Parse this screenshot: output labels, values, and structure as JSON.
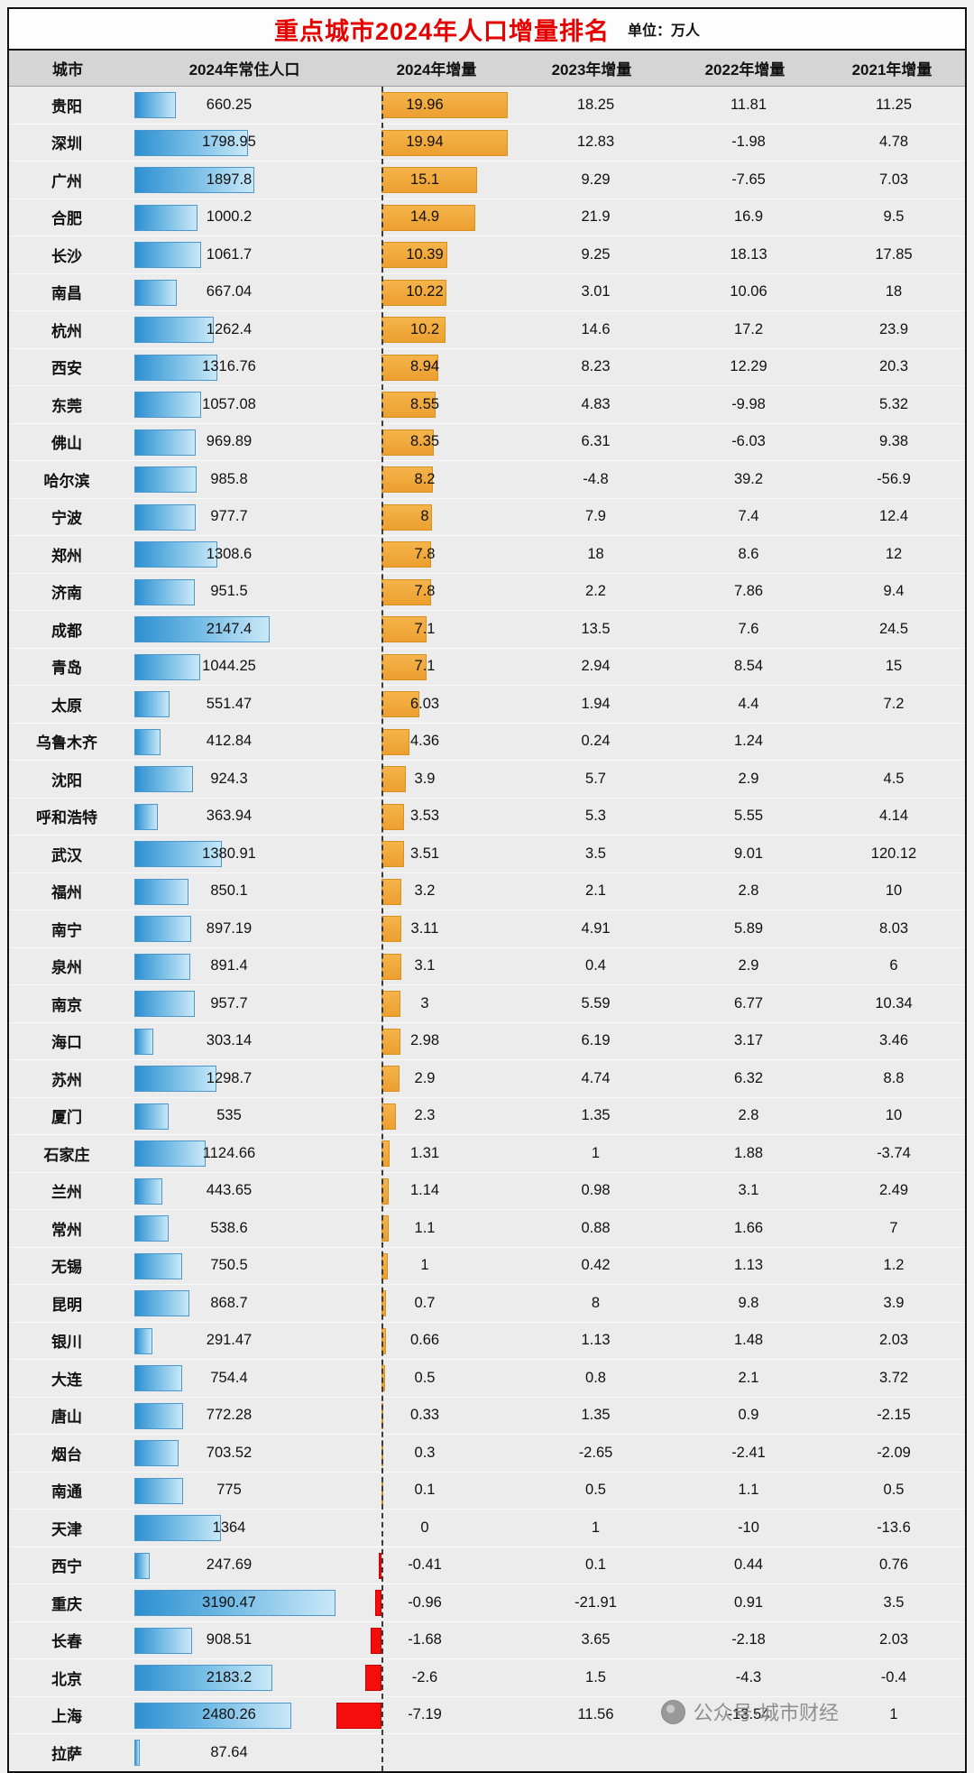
{
  "title": "重点城市2024年人口增量排名",
  "unit_label": "单位：万人",
  "watermark": "公众号·城市财经",
  "columns": [
    "城市",
    "2024年常住人口",
    "2024年增量",
    "2023年增量",
    "2022年增量",
    "2021年增量"
  ],
  "colors": {
    "title_red": "#e60000",
    "blue_bar": "#2d8fd1",
    "orange_bar": "#efa73b",
    "red_bar": "#f50d0d",
    "header_bg": "#d5d5d5",
    "body_bg": "#ececec"
  },
  "chart_data": {
    "type": "bar",
    "orientation": "horizontal",
    "pop_axis_max": 3300,
    "inc_axis": [
      -8,
      20
    ],
    "rows": [
      {
        "city": "贵阳",
        "pop": "660.25",
        "inc2024": "19.96",
        "inc2023": "18.25",
        "inc2022": "11.81",
        "inc2021": "11.25"
      },
      {
        "city": "深圳",
        "pop": "1798.95",
        "inc2024": "19.94",
        "inc2023": "12.83",
        "inc2022": "-1.98",
        "inc2021": "4.78"
      },
      {
        "city": "广州",
        "pop": "1897.8",
        "inc2024": "15.1",
        "inc2023": "9.29",
        "inc2022": "-7.65",
        "inc2021": "7.03"
      },
      {
        "city": "合肥",
        "pop": "1000.2",
        "inc2024": "14.9",
        "inc2023": "21.9",
        "inc2022": "16.9",
        "inc2021": "9.5"
      },
      {
        "city": "长沙",
        "pop": "1061.7",
        "inc2024": "10.39",
        "inc2023": "9.25",
        "inc2022": "18.13",
        "inc2021": "17.85"
      },
      {
        "city": "南昌",
        "pop": "667.04",
        "inc2024": "10.22",
        "inc2023": "3.01",
        "inc2022": "10.06",
        "inc2021": "18"
      },
      {
        "city": "杭州",
        "pop": "1262.4",
        "inc2024": "10.2",
        "inc2023": "14.6",
        "inc2022": "17.2",
        "inc2021": "23.9"
      },
      {
        "city": "西安",
        "pop": "1316.76",
        "inc2024": "8.94",
        "inc2023": "8.23",
        "inc2022": "12.29",
        "inc2021": "20.3"
      },
      {
        "city": "东莞",
        "pop": "1057.08",
        "inc2024": "8.55",
        "inc2023": "4.83",
        "inc2022": "-9.98",
        "inc2021": "5.32"
      },
      {
        "city": "佛山",
        "pop": "969.89",
        "inc2024": "8.35",
        "inc2023": "6.31",
        "inc2022": "-6.03",
        "inc2021": "9.38"
      },
      {
        "city": "哈尔滨",
        "pop": "985.8",
        "inc2024": "8.2",
        "inc2023": "-4.8",
        "inc2022": "39.2",
        "inc2021": "-56.9"
      },
      {
        "city": "宁波",
        "pop": "977.7",
        "inc2024": "8",
        "inc2023": "7.9",
        "inc2022": "7.4",
        "inc2021": "12.4"
      },
      {
        "city": "郑州",
        "pop": "1308.6",
        "inc2024": "7.8",
        "inc2023": "18",
        "inc2022": "8.6",
        "inc2021": "12"
      },
      {
        "city": "济南",
        "pop": "951.5",
        "inc2024": "7.8",
        "inc2023": "2.2",
        "inc2022": "7.86",
        "inc2021": "9.4"
      },
      {
        "city": "成都",
        "pop": "2147.4",
        "inc2024": "7.1",
        "inc2023": "13.5",
        "inc2022": "7.6",
        "inc2021": "24.5"
      },
      {
        "city": "青岛",
        "pop": "1044.25",
        "inc2024": "7.1",
        "inc2023": "2.94",
        "inc2022": "8.54",
        "inc2021": "15"
      },
      {
        "city": "太原",
        "pop": "551.47",
        "inc2024": "6.03",
        "inc2023": "1.94",
        "inc2022": "4.4",
        "inc2021": "7.2"
      },
      {
        "city": "乌鲁木齐",
        "pop": "412.84",
        "inc2024": "4.36",
        "inc2023": "0.24",
        "inc2022": "1.24",
        "inc2021": ""
      },
      {
        "city": "沈阳",
        "pop": "924.3",
        "inc2024": "3.9",
        "inc2023": "5.7",
        "inc2022": "2.9",
        "inc2021": "4.5"
      },
      {
        "city": "呼和浩特",
        "pop": "363.94",
        "inc2024": "3.53",
        "inc2023": "5.3",
        "inc2022": "5.55",
        "inc2021": "4.14"
      },
      {
        "city": "武汉",
        "pop": "1380.91",
        "inc2024": "3.51",
        "inc2023": "3.5",
        "inc2022": "9.01",
        "inc2021": "120.12"
      },
      {
        "city": "福州",
        "pop": "850.1",
        "inc2024": "3.2",
        "inc2023": "2.1",
        "inc2022": "2.8",
        "inc2021": "10"
      },
      {
        "city": "南宁",
        "pop": "897.19",
        "inc2024": "3.11",
        "inc2023": "4.91",
        "inc2022": "5.89",
        "inc2021": "8.03"
      },
      {
        "city": "泉州",
        "pop": "891.4",
        "inc2024": "3.1",
        "inc2023": "0.4",
        "inc2022": "2.9",
        "inc2021": "6"
      },
      {
        "city": "南京",
        "pop": "957.7",
        "inc2024": "3",
        "inc2023": "5.59",
        "inc2022": "6.77",
        "inc2021": "10.34"
      },
      {
        "city": "海口",
        "pop": "303.14",
        "inc2024": "2.98",
        "inc2023": "6.19",
        "inc2022": "3.17",
        "inc2021": "3.46"
      },
      {
        "city": "苏州",
        "pop": "1298.7",
        "inc2024": "2.9",
        "inc2023": "4.74",
        "inc2022": "6.32",
        "inc2021": "8.8"
      },
      {
        "city": "厦门",
        "pop": "535",
        "inc2024": "2.3",
        "inc2023": "1.35",
        "inc2022": "2.8",
        "inc2021": "10"
      },
      {
        "city": "石家庄",
        "pop": "1124.66",
        "inc2024": "1.31",
        "inc2023": "1",
        "inc2022": "1.88",
        "inc2021": "-3.74"
      },
      {
        "city": "兰州",
        "pop": "443.65",
        "inc2024": "1.14",
        "inc2023": "0.98",
        "inc2022": "3.1",
        "inc2021": "2.49"
      },
      {
        "city": "常州",
        "pop": "538.6",
        "inc2024": "1.1",
        "inc2023": "0.88",
        "inc2022": "1.66",
        "inc2021": "7"
      },
      {
        "city": "无锡",
        "pop": "750.5",
        "inc2024": "1",
        "inc2023": "0.42",
        "inc2022": "1.13",
        "inc2021": "1.2"
      },
      {
        "city": "昆明",
        "pop": "868.7",
        "inc2024": "0.7",
        "inc2023": "8",
        "inc2022": "9.8",
        "inc2021": "3.9"
      },
      {
        "city": "银川",
        "pop": "291.47",
        "inc2024": "0.66",
        "inc2023": "1.13",
        "inc2022": "1.48",
        "inc2021": "2.03"
      },
      {
        "city": "大连",
        "pop": "754.4",
        "inc2024": "0.5",
        "inc2023": "0.8",
        "inc2022": "2.1",
        "inc2021": "3.72"
      },
      {
        "city": "唐山",
        "pop": "772.28",
        "inc2024": "0.33",
        "inc2023": "1.35",
        "inc2022": "0.9",
        "inc2021": "-2.15"
      },
      {
        "city": "烟台",
        "pop": "703.52",
        "inc2024": "0.3",
        "inc2023": "-2.65",
        "inc2022": "-2.41",
        "inc2021": "-2.09"
      },
      {
        "city": "南通",
        "pop": "775",
        "inc2024": "0.1",
        "inc2023": "0.5",
        "inc2022": "1.1",
        "inc2021": "0.5"
      },
      {
        "city": "天津",
        "pop": "1364",
        "inc2024": "0",
        "inc2023": "1",
        "inc2022": "-10",
        "inc2021": "-13.6"
      },
      {
        "city": "西宁",
        "pop": "247.69",
        "inc2024": "-0.41",
        "inc2023": "0.1",
        "inc2022": "0.44",
        "inc2021": "0.76"
      },
      {
        "city": "重庆",
        "pop": "3190.47",
        "inc2024": "-0.96",
        "inc2023": "-21.91",
        "inc2022": "0.91",
        "inc2021": "3.5"
      },
      {
        "city": "长春",
        "pop": "908.51",
        "inc2024": "-1.68",
        "inc2023": "3.65",
        "inc2022": "-2.18",
        "inc2021": "2.03"
      },
      {
        "city": "北京",
        "pop": "2183.2",
        "inc2024": "-2.6",
        "inc2023": "1.5",
        "inc2022": "-4.3",
        "inc2021": "-0.4"
      },
      {
        "city": "上海",
        "pop": "2480.26",
        "inc2024": "-7.19",
        "inc2023": "11.56",
        "inc2022": "-13.54",
        "inc2021": "1"
      },
      {
        "city": "拉萨",
        "pop": "87.64",
        "inc2024": "",
        "inc2023": "",
        "inc2022": "",
        "inc2021": ""
      }
    ]
  }
}
